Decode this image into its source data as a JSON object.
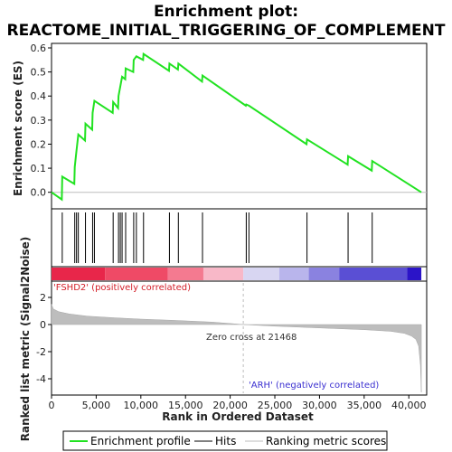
{
  "chart_data": {
    "type": "line",
    "title_line1": "Enrichment plot:",
    "title_line2": "REACTOME_INITIAL_TRIGGERING_OF_COMPLEMENT",
    "es_ylabel": "Enrichment score (ES)",
    "metric_ylabel": "Ranked list metric (Signal2Noise)",
    "xlabel": "Rank in Ordered Dataset",
    "xlim": [
      0,
      42000
    ],
    "x_ticks": [
      0,
      5000,
      10000,
      15000,
      20000,
      25000,
      30000,
      35000,
      40000
    ],
    "x_tick_labels": [
      "0",
      "5,000",
      "10,000",
      "15,000",
      "20,000",
      "25,000",
      "30,000",
      "35,000",
      "40,000"
    ],
    "es_ylim": [
      -0.05,
      0.6
    ],
    "es_ticks": [
      0.0,
      0.1,
      0.2,
      0.3,
      0.4,
      0.5,
      0.6
    ],
    "es_tick_labels": [
      "0.0",
      "0.1",
      "0.2",
      "0.3",
      "0.4",
      "0.5",
      "0.6"
    ],
    "metric_ylim": [
      -5,
      3
    ],
    "metric_ticks": [
      2,
      0,
      -2,
      -4
    ],
    "metric_tick_labels": [
      "2",
      "0",
      "-2",
      "-4"
    ],
    "grid": false,
    "hits": [
      1200,
      2600,
      2800,
      3000,
      3800,
      4600,
      4800,
      6900,
      7500,
      7700,
      7900,
      8300,
      9200,
      9500,
      10300,
      13200,
      14200,
      16900,
      21800,
      22100,
      28600,
      33200,
      35900
    ],
    "es_curve": {
      "x": [
        0,
        1150,
        1200,
        2550,
        2600,
        2800,
        3000,
        3750,
        3800,
        4550,
        4600,
        4800,
        6850,
        6900,
        7450,
        7500,
        7700,
        7900,
        8250,
        8300,
        9150,
        9200,
        9500,
        10250,
        10300,
        13150,
        13200,
        14150,
        14200,
        16850,
        16900,
        21750,
        21800,
        22100,
        28550,
        28600,
        33150,
        33200,
        35850,
        35900,
        41400
      ],
      "y": [
        0.0,
        -0.03,
        0.065,
        0.035,
        0.105,
        0.175,
        0.24,
        0.215,
        0.285,
        0.26,
        0.33,
        0.38,
        0.33,
        0.375,
        0.35,
        0.4,
        0.44,
        0.48,
        0.47,
        0.515,
        0.5,
        0.55,
        0.565,
        0.55,
        0.575,
        0.505,
        0.535,
        0.51,
        0.535,
        0.46,
        0.485,
        0.36,
        0.365,
        0.36,
        0.2,
        0.22,
        0.115,
        0.15,
        0.09,
        0.13,
        0.0
      ]
    },
    "metric_profile": {
      "x": [
        0,
        200,
        800,
        2000,
        4000,
        7000,
        10000,
        14000,
        18000,
        21468,
        25000,
        30000,
        35000,
        38000,
        39500,
        40300,
        40800,
        41100,
        41300,
        41400
      ],
      "y": [
        1.5,
        1.15,
        0.95,
        0.78,
        0.62,
        0.5,
        0.4,
        0.3,
        0.18,
        0.0,
        -0.12,
        -0.25,
        -0.38,
        -0.5,
        -0.65,
        -0.85,
        -1.1,
        -1.6,
        -3.0,
        -5.0
      ]
    },
    "heatmap_bands": [
      {
        "start": 0,
        "end": 6000,
        "color": "#e8264a"
      },
      {
        "start": 6000,
        "end": 13000,
        "color": "#ef4a66"
      },
      {
        "start": 13000,
        "end": 17000,
        "color": "#f47a90"
      },
      {
        "start": 17000,
        "end": 21468,
        "color": "#f8b8c8"
      },
      {
        "start": 21468,
        "end": 25500,
        "color": "#d8d6f2"
      },
      {
        "start": 25500,
        "end": 28800,
        "color": "#b9b5ec"
      },
      {
        "start": 28800,
        "end": 32200,
        "color": "#8a82e0"
      },
      {
        "start": 32200,
        "end": 39800,
        "color": "#5a4fd4"
      },
      {
        "start": 39800,
        "end": 41400,
        "color": "#2b14c8"
      }
    ],
    "zero_cross": 21468,
    "zero_cross_label": "Zero cross at 21468",
    "pos_label": "'FSHD2' (positively correlated)",
    "neg_label": "'ARH' (negatively correlated)",
    "legend": [
      {
        "name": "Enrichment profile",
        "color": "#21e221"
      },
      {
        "name": "Hits",
        "color": "#000000"
      },
      {
        "name": "Ranking metric scores",
        "color": "#bdbdbd"
      }
    ],
    "legend_position": "bottom",
    "colors": {
      "es_line": "#21e221",
      "hits": "#000000",
      "metric_fill": "#bdbdbd",
      "pos_text": "#d4202a",
      "neg_text": "#3a2fd0",
      "zero_line": "#bdbdbd"
    }
  }
}
